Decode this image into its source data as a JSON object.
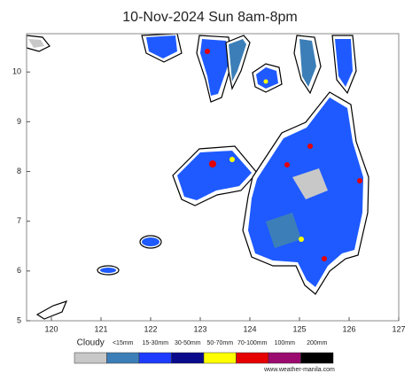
{
  "map": {
    "title": "10-Nov-2024 Sun 8am-8pm",
    "xlim": [
      119.5,
      127
    ],
    "ylim": [
      5,
      10.77
    ],
    "xticks": [
      120,
      121,
      122,
      123,
      124,
      125,
      126,
      127
    ],
    "yticks": [
      5,
      6,
      7,
      8,
      9,
      10
    ],
    "legend": {
      "labels": [
        "Cloudy",
        "<15mm",
        "15-30mm",
        "30-50mm",
        "50-70mm",
        "70-100mm",
        "100mm",
        "200mm"
      ],
      "colors": [
        "#c8c8c8",
        "#3c7fb8",
        "#1e3cff",
        "#0a0a8c",
        "#ffff00",
        "#e60000",
        "#9b0a6e",
        "#000000"
      ]
    },
    "source": "www.weather-manila.com"
  }
}
